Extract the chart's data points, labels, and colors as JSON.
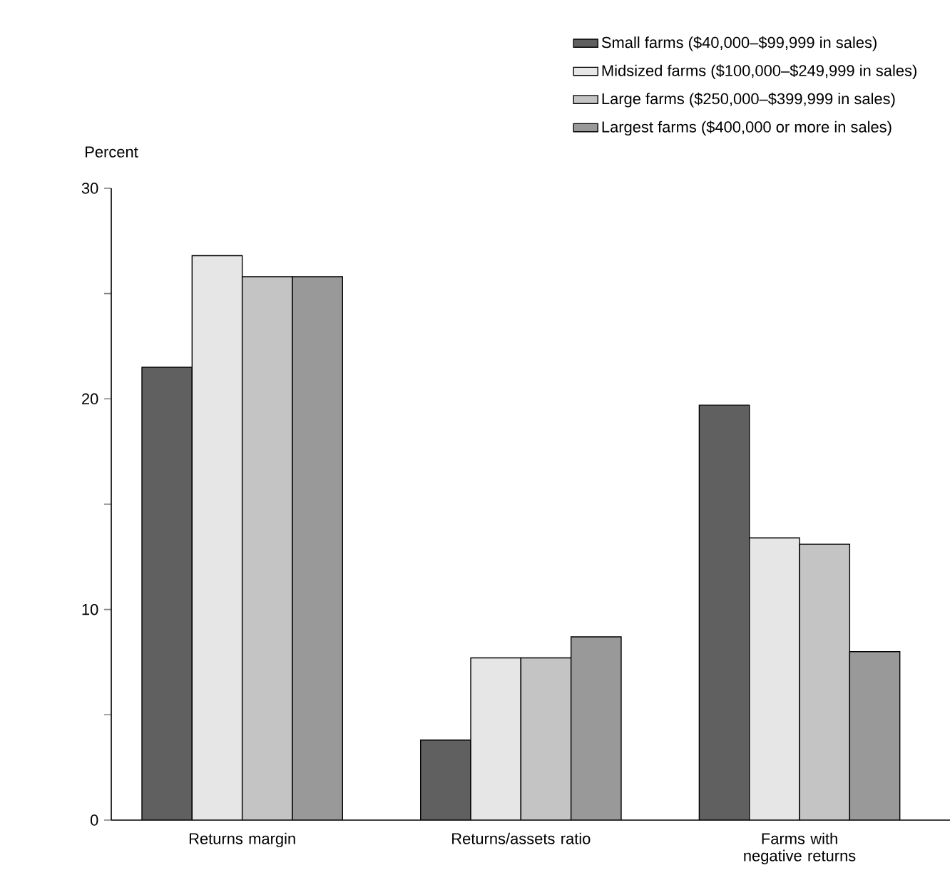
{
  "chart_data": {
    "type": "bar",
    "ylabel": "Percent",
    "categories": [
      "Returns margin",
      "Returns/assets ratio",
      "Farms with negative returns"
    ],
    "series": [
      {
        "name": "Small farms ($40,000–$99,999 in sales)",
        "color": "#606060",
        "values": [
          21.5,
          3.8,
          19.7
        ]
      },
      {
        "name": "Midsized farms ($100,000–$249,999 in sales)",
        "color": "#e6e6e6",
        "values": [
          26.8,
          7.7,
          13.4
        ]
      },
      {
        "name": "Large farms ($250,000–$399,999 in sales)",
        "color": "#c4c4c4",
        "values": [
          25.8,
          7.7,
          13.1
        ]
      },
      {
        "name": "Largest farms ($400,000 or more in sales)",
        "color": "#999999",
        "values": [
          25.8,
          8.7,
          8.0
        ]
      }
    ],
    "ylim": [
      0,
      30
    ],
    "yticks": [
      0,
      {
        "value": 5,
        "label": null
      },
      10,
      {
        "value": 15,
        "label": null
      },
      20,
      {
        "value": 25,
        "label": null
      },
      30
    ],
    "grid": false,
    "legend": "top right"
  }
}
